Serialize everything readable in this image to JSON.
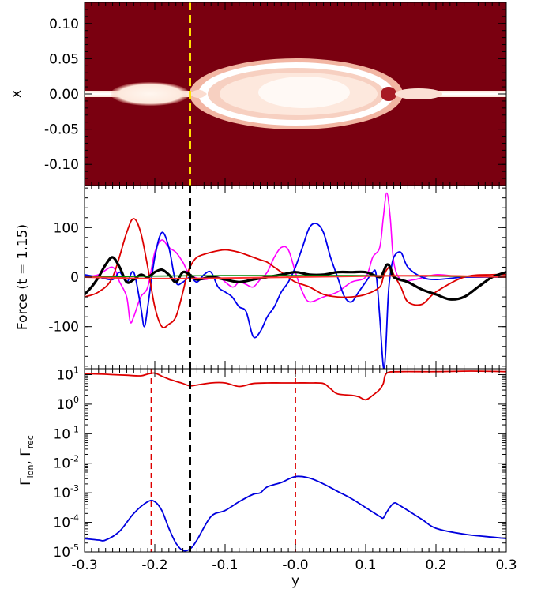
{
  "chart_data": [
    {
      "type": "heatmap",
      "panel": "top",
      "ylabel": "x",
      "xlim": [
        -0.3,
        0.3
      ],
      "ylim": [
        -0.13,
        0.13
      ],
      "yticks": [
        "0.10",
        "0.05",
        "0.00",
        "-0.05",
        "-0.10"
      ],
      "ytick_values": [
        0.1,
        0.05,
        0.0,
        -0.05,
        -0.1
      ],
      "background_color": "#7a0010",
      "highlight_color": "#fff5ec",
      "marker_line": {
        "y": -0.15,
        "color": "#ffe100",
        "style": "dashed"
      }
    },
    {
      "type": "line",
      "panel": "middle",
      "ylabel": "Force (t = 1.15)",
      "xlim": [
        -0.3,
        0.3
      ],
      "ylim": [
        -185,
        185
      ],
      "yticks": [
        "100",
        "0",
        "-100"
      ],
      "ytick_values": [
        100,
        0,
        -100
      ],
      "marker_line": {
        "y": -0.15,
        "color": "#000000",
        "style": "dashed"
      },
      "series": [
        {
          "color": "#ff00ff",
          "width": 1.6,
          "x": [
            -0.3,
            -0.28,
            -0.26,
            -0.25,
            -0.24,
            -0.235,
            -0.23,
            -0.22,
            -0.21,
            -0.2,
            -0.19,
            -0.18,
            -0.17,
            -0.16,
            -0.15,
            -0.13,
            -0.11,
            -0.09,
            -0.08,
            -0.07,
            -0.06,
            -0.05,
            -0.04,
            -0.03,
            -0.02,
            -0.01,
            0.0,
            0.01,
            0.02,
            0.04,
            0.06,
            0.08,
            0.1,
            0.11,
            0.12,
            0.125,
            0.13,
            0.135,
            0.14,
            0.15,
            0.17,
            0.2,
            0.24,
            0.28,
            0.3
          ],
          "y": [
            0,
            5,
            20,
            -10,
            -40,
            -90,
            -80,
            -40,
            -20,
            50,
            75,
            60,
            50,
            30,
            5,
            -5,
            0,
            -20,
            -10,
            -15,
            -20,
            -5,
            10,
            40,
            60,
            55,
            10,
            -30,
            -50,
            -40,
            -30,
            -10,
            0,
            40,
            60,
            120,
            170,
            120,
            30,
            -5,
            -5,
            5,
            0,
            0,
            0
          ]
        },
        {
          "color": "#0000ee",
          "width": 1.8,
          "x": [
            -0.3,
            -0.28,
            -0.26,
            -0.25,
            -0.24,
            -0.23,
            -0.22,
            -0.215,
            -0.21,
            -0.2,
            -0.19,
            -0.18,
            -0.17,
            -0.16,
            -0.15,
            -0.14,
            -0.13,
            -0.12,
            -0.11,
            -0.1,
            -0.09,
            -0.08,
            -0.07,
            -0.06,
            -0.05,
            -0.04,
            -0.03,
            -0.02,
            -0.01,
            0.0,
            0.01,
            0.02,
            0.03,
            0.04,
            0.05,
            0.06,
            0.07,
            0.08,
            0.09,
            0.1,
            0.11,
            0.115,
            0.12,
            0.125,
            0.128,
            0.132,
            0.135,
            0.14,
            0.15,
            0.16,
            0.18,
            0.2,
            0.24,
            0.28,
            0.3
          ],
          "y": [
            5,
            0,
            -5,
            10,
            -10,
            10,
            -60,
            -100,
            -60,
            40,
            90,
            60,
            -10,
            -10,
            0,
            -10,
            5,
            10,
            -20,
            -30,
            -40,
            -60,
            -70,
            -120,
            -110,
            -80,
            -60,
            -30,
            -10,
            20,
            60,
            100,
            108,
            90,
            40,
            0,
            -40,
            -50,
            -30,
            -10,
            10,
            5,
            -80,
            -180,
            -160,
            -40,
            5,
            40,
            50,
            20,
            0,
            -5,
            0,
            0,
            0
          ]
        },
        {
          "color": "#dd0000",
          "width": 1.8,
          "x": [
            -0.3,
            -0.28,
            -0.26,
            -0.24,
            -0.23,
            -0.22,
            -0.21,
            -0.2,
            -0.19,
            -0.18,
            -0.17,
            -0.16,
            -0.155,
            -0.15,
            -0.14,
            -0.12,
            -0.1,
            -0.08,
            -0.06,
            -0.05,
            -0.04,
            -0.03,
            -0.02,
            -0.01,
            0.0,
            0.02,
            0.04,
            0.06,
            0.08,
            0.1,
            0.12,
            0.125,
            0.13,
            0.135,
            0.14,
            0.15,
            0.16,
            0.18,
            0.2,
            0.24,
            0.28,
            0.3
          ],
          "y": [
            -40,
            -30,
            0,
            90,
            118,
            90,
            20,
            -60,
            -100,
            -95,
            -80,
            -30,
            0,
            20,
            40,
            50,
            55,
            50,
            40,
            35,
            30,
            20,
            10,
            0,
            -10,
            -20,
            -35,
            -40,
            -40,
            -35,
            -20,
            0,
            15,
            20,
            5,
            -20,
            -50,
            -55,
            -30,
            0,
            5,
            5
          ]
        },
        {
          "color": "#000000",
          "width": 3.2,
          "x": [
            -0.3,
            -0.29,
            -0.28,
            -0.27,
            -0.26,
            -0.25,
            -0.24,
            -0.23,
            -0.22,
            -0.21,
            -0.2,
            -0.19,
            -0.18,
            -0.17,
            -0.16,
            -0.15,
            -0.14,
            -0.12,
            -0.1,
            -0.08,
            -0.06,
            -0.04,
            -0.02,
            0.0,
            0.02,
            0.04,
            0.06,
            0.08,
            0.1,
            0.12,
            0.125,
            0.13,
            0.135,
            0.14,
            0.16,
            0.18,
            0.2,
            0.22,
            0.24,
            0.26,
            0.28,
            0.3
          ],
          "y": [
            -35,
            -20,
            0,
            25,
            40,
            20,
            -10,
            -5,
            5,
            0,
            10,
            15,
            5,
            -10,
            10,
            5,
            -5,
            0,
            -5,
            -10,
            -5,
            0,
            5,
            10,
            5,
            5,
            10,
            10,
            10,
            0,
            10,
            25,
            20,
            0,
            -10,
            -25,
            -35,
            -45,
            -40,
            -20,
            0,
            10
          ]
        },
        {
          "color": "#008800",
          "width": 1.6,
          "x": [
            -0.3,
            -0.2,
            -0.1,
            0.0,
            0.1,
            0.2,
            0.3
          ],
          "y": [
            0,
            2,
            3,
            3,
            3,
            2,
            0
          ]
        },
        {
          "color": "#ff3333",
          "width": 2.0,
          "x": [
            -0.3,
            -0.2,
            -0.1,
            0.0,
            0.1,
            0.2,
            0.3
          ],
          "y": [
            0,
            -3,
            -2,
            0,
            2,
            3,
            0
          ]
        }
      ]
    },
    {
      "type": "line",
      "panel": "bottom",
      "ylabel_main": "Γ",
      "ylabel_sub1": "ion",
      "ylabel_sep": ", Γ",
      "ylabel_sub2": "rec",
      "xlabel": "y",
      "xlim": [
        -0.3,
        0.3
      ],
      "ylim_log10": [
        -5,
        1.2
      ],
      "ytick_exponents": [
        "1",
        "0",
        "-1",
        "-2",
        "-3",
        "-4",
        "-5"
      ],
      "ytick_values_log10": [
        1,
        0,
        -1,
        -2,
        -3,
        -4,
        -5
      ],
      "ytick_base": "10",
      "xticks": [
        "-0.3",
        "-0.2",
        "-0.1",
        "-0.0",
        "0.1",
        "0.2",
        "0.3"
      ],
      "xtick_values": [
        -0.3,
        -0.2,
        -0.1,
        0.0,
        0.1,
        0.2,
        0.3
      ],
      "marker_line": {
        "y": -0.15,
        "color": "#000000",
        "style": "dashed"
      },
      "red_markers": {
        "y": [
          -0.205,
          0.0
        ],
        "color": "#dd0000",
        "style": "dashed"
      },
      "series": [
        {
          "name_sub": "rec",
          "color": "#dd0000",
          "width": 1.8,
          "x": [
            -0.3,
            -0.28,
            -0.26,
            -0.24,
            -0.22,
            -0.21,
            -0.2,
            -0.19,
            -0.18,
            -0.16,
            -0.15,
            -0.14,
            -0.12,
            -0.1,
            -0.08,
            -0.06,
            -0.04,
            -0.02,
            0.0,
            0.02,
            0.04,
            0.05,
            0.06,
            0.08,
            0.09,
            0.1,
            0.11,
            0.12,
            0.125,
            0.13,
            0.15,
            0.2,
            0.25,
            0.3
          ],
          "y_log10": [
            1.03,
            1.02,
            1.0,
            0.98,
            0.96,
            1.02,
            1.05,
            0.95,
            0.85,
            0.7,
            0.62,
            0.65,
            0.72,
            0.72,
            0.6,
            0.7,
            0.72,
            0.72,
            0.72,
            0.72,
            0.7,
            0.52,
            0.35,
            0.3,
            0.25,
            0.15,
            0.3,
            0.5,
            0.7,
            1.05,
            1.1,
            1.1,
            1.12,
            1.1
          ]
        },
        {
          "name_sub": "ion",
          "color": "#0000dd",
          "width": 1.8,
          "x": [
            -0.3,
            -0.28,
            -0.27,
            -0.25,
            -0.23,
            -0.21,
            -0.2,
            -0.19,
            -0.18,
            -0.17,
            -0.16,
            -0.15,
            -0.14,
            -0.12,
            -0.1,
            -0.08,
            -0.06,
            -0.05,
            -0.04,
            -0.02,
            0.0,
            0.02,
            0.04,
            0.06,
            0.08,
            0.1,
            0.12,
            0.125,
            0.13,
            0.14,
            0.15,
            0.18,
            0.2,
            0.24,
            0.28,
            0.3
          ],
          "y_log10": [
            -4.55,
            -4.6,
            -4.6,
            -4.3,
            -3.7,
            -3.3,
            -3.3,
            -3.6,
            -4.2,
            -4.7,
            -4.95,
            -4.9,
            -4.6,
            -3.8,
            -3.6,
            -3.3,
            -3.05,
            -3.0,
            -2.8,
            -2.65,
            -2.45,
            -2.5,
            -2.7,
            -2.95,
            -3.2,
            -3.5,
            -3.8,
            -3.85,
            -3.65,
            -3.35,
            -3.45,
            -3.9,
            -4.2,
            -4.4,
            -4.5,
            -4.55
          ]
        }
      ]
    }
  ]
}
